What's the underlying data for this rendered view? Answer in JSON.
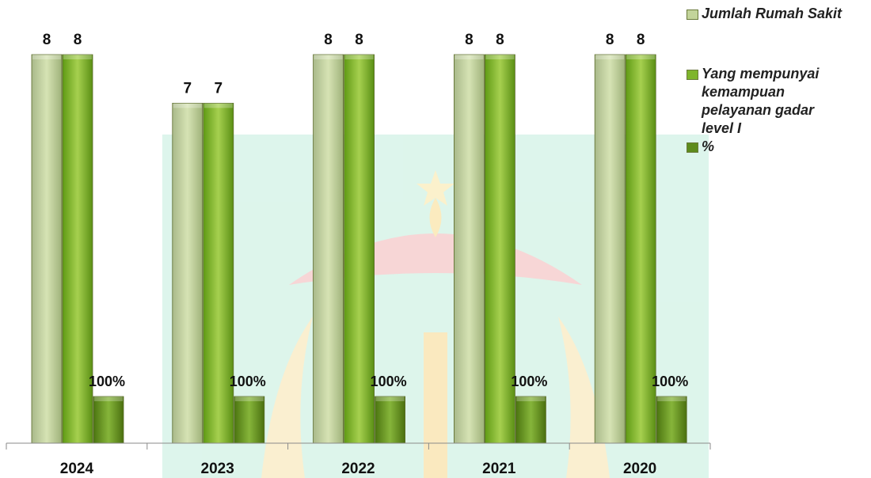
{
  "chart_data": {
    "type": "bar",
    "categories": [
      "2024",
      "2023",
      "2022",
      "2021",
      "2020"
    ],
    "series": [
      {
        "name": "Jumlah Rumah Sakit",
        "values": [
          8,
          7,
          8,
          8,
          8
        ],
        "labels": [
          "8",
          "7",
          "8",
          "8",
          "8"
        ],
        "color": "#c3d49a"
      },
      {
        "name": "Yang mempunyai kemampuan pelayanan gadar level I",
        "values": [
          8,
          7,
          8,
          8,
          8
        ],
        "labels": [
          "8",
          "7",
          "8",
          "8",
          "8"
        ],
        "color": "#7fb52c"
      },
      {
        "name": "%",
        "values": [
          1,
          1,
          1,
          1,
          1
        ],
        "labels": [
          "100%",
          "100%",
          "100%",
          "100%",
          "100%"
        ],
        "color": "#5d8b1c"
      }
    ],
    "ylim": [
      0,
      8.5
    ],
    "grid": false,
    "legend": "right"
  }
}
